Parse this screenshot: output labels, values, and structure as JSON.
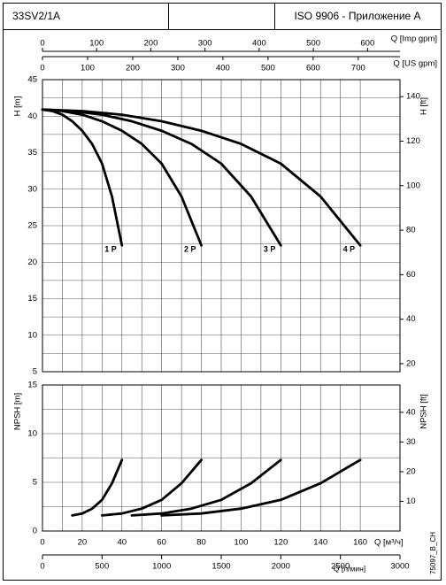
{
  "header": {
    "model": "33SV2/1A",
    "standard": "ISO 9906 - Приложение A"
  },
  "code": "75097_B_CH",
  "chart_data": [
    {
      "type": "line",
      "ylabel": "H [m]",
      "y2label": "H [ft]",
      "xlim": [
        0,
        180
      ],
      "ylim": [
        5,
        45
      ],
      "yticks": [
        5,
        10,
        15,
        20,
        25,
        30,
        35,
        40,
        45
      ],
      "y2lim": [
        16.4042,
        147.6378
      ],
      "y2ticks": [
        20,
        40,
        60,
        80,
        100,
        120,
        140
      ],
      "xticks": [
        0,
        20,
        40,
        60,
        80,
        100,
        120,
        140,
        160
      ],
      "top_axes": [
        {
          "label": "Q [Imp gpm]",
          "lim": [
            0,
            659.9
          ],
          "ticks": [
            0,
            100,
            200,
            300,
            400,
            500,
            600
          ]
        },
        {
          "label": "Q [US gpm]",
          "lim": [
            0,
            792.5
          ],
          "ticks": [
            0,
            100,
            200,
            300,
            400,
            500,
            600,
            700
          ]
        }
      ],
      "grid": true,
      "series": [
        {
          "name": "1 P",
          "color": "#000000",
          "x": [
            0,
            5,
            10,
            15,
            20,
            25,
            30,
            35,
            40
          ],
          "values": [
            40.9,
            40.7,
            40.2,
            39.3,
            38,
            36.2,
            33.5,
            29,
            22.3
          ]
        },
        {
          "name": "2 P",
          "color": "#000000",
          "x": [
            0,
            10,
            20,
            30,
            40,
            50,
            60,
            70,
            80
          ],
          "values": [
            40.9,
            40.7,
            40.2,
            39.3,
            38,
            36.2,
            33.5,
            29,
            22.3
          ]
        },
        {
          "name": "3 P",
          "color": "#000000",
          "x": [
            0,
            15,
            30,
            45,
            60,
            75,
            90,
            105,
            120
          ],
          "values": [
            40.9,
            40.7,
            40.2,
            39.3,
            38,
            36.2,
            33.5,
            29,
            22.3
          ]
        },
        {
          "name": "4 P",
          "color": "#000000",
          "x": [
            0,
            20,
            40,
            60,
            80,
            100,
            120,
            140,
            160
          ],
          "values": [
            40.9,
            40.7,
            40.2,
            39.3,
            38,
            36.2,
            33.5,
            29,
            22.3
          ]
        }
      ]
    },
    {
      "type": "line",
      "ylabel": "NPSH [m]",
      "y2label": "NPSH [ft]",
      "xlabel": "Q [м³/ч]",
      "xlim": [
        0,
        180
      ],
      "xticks": [
        0,
        20,
        40,
        60,
        80,
        100,
        120,
        140,
        160
      ],
      "ylim": [
        0,
        15
      ],
      "yticks": [
        0,
        5,
        10,
        15
      ],
      "y2lim": [
        0,
        49.2126
      ],
      "y2ticks": [
        10,
        20,
        30,
        40
      ],
      "bottom_axis": {
        "label": "Q [л/мин]",
        "lim": [
          0,
          3000
        ],
        "ticks": [
          0,
          500,
          1000,
          1500,
          2000,
          2500,
          3000
        ]
      },
      "grid": true,
      "series": [
        {
          "color": "#000000",
          "x": [
            15,
            20,
            25,
            30,
            35,
            40
          ],
          "values": [
            1.6,
            1.8,
            2.3,
            3.2,
            4.9,
            7.3
          ]
        },
        {
          "color": "#000000",
          "x": [
            30,
            40,
            50,
            60,
            70,
            80
          ],
          "values": [
            1.6,
            1.8,
            2.3,
            3.2,
            4.9,
            7.3
          ]
        },
        {
          "color": "#000000",
          "x": [
            45,
            60,
            75,
            90,
            105,
            120
          ],
          "values": [
            1.6,
            1.8,
            2.3,
            3.2,
            4.9,
            7.3
          ]
        },
        {
          "color": "#000000",
          "x": [
            60,
            80,
            100,
            120,
            140,
            160
          ],
          "values": [
            1.6,
            1.8,
            2.3,
            3.2,
            4.9,
            7.3
          ]
        }
      ]
    }
  ]
}
